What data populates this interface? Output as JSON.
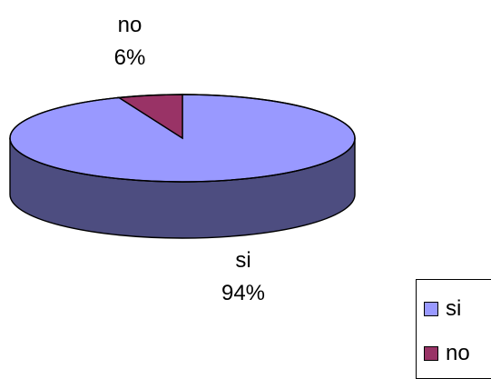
{
  "chart_data": {
    "type": "pie",
    "categories": [
      "si",
      "no"
    ],
    "values": [
      94,
      6
    ],
    "labels": [
      {
        "name": "si",
        "percent": "94%"
      },
      {
        "name": "no",
        "percent": "6%"
      }
    ],
    "legend": [
      "si",
      "no"
    ],
    "legend_position": "bottom-right",
    "colors": {
      "si_top": "#9999FF",
      "si_side": "#4D4D80",
      "no_top": "#993366",
      "no_side": "#4D1A33",
      "outline": "#000000"
    }
  }
}
